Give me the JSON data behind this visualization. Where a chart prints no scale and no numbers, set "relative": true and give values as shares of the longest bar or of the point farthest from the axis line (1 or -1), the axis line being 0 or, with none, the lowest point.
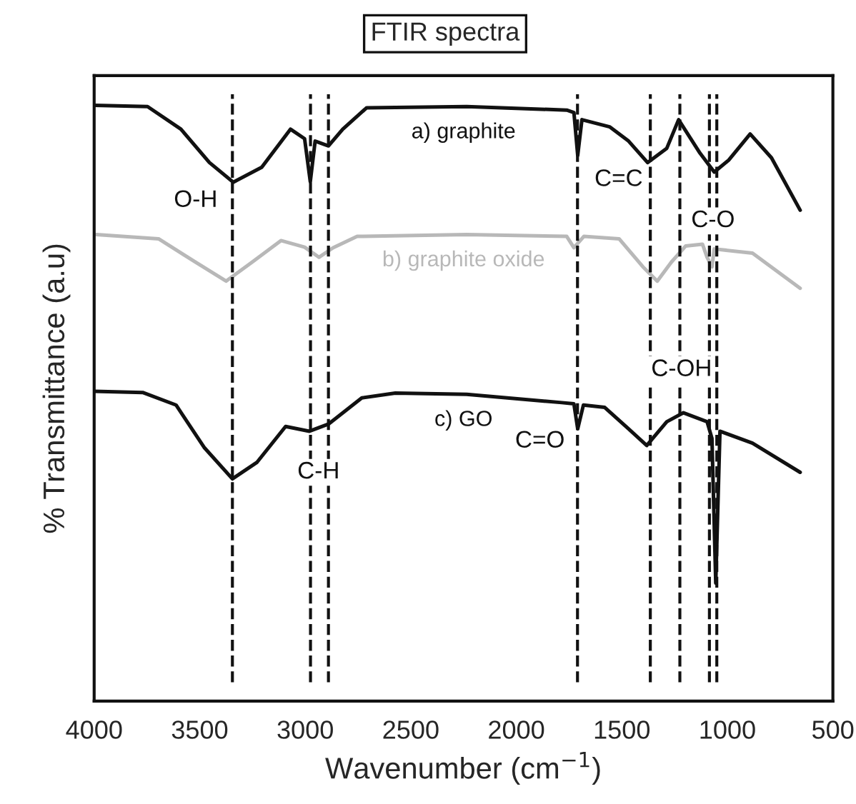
{
  "chart_data": {
    "type": "line",
    "title": "FTIR spectra",
    "xlabel": "Wavenumber (cm$^{−1}$)",
    "ylabel": "% Transmittance (a.u)",
    "relative": true,
    "xlim": [
      4000,
      500
    ],
    "xticks": [
      4000,
      3500,
      3000,
      2500,
      2000,
      1500,
      1000,
      500
    ],
    "tick_labels": "x",
    "grid": false,
    "legend": false,
    "marker": "none",
    "line_style": "solid",
    "series": [
      {
        "name": "a) graphite",
        "color": "#111111",
        "x": [
          4000,
          3747,
          3589,
          3454,
          3341,
          3206,
          3070,
          3003,
          2976,
          2953,
          2890,
          2822,
          2709,
          2235,
          1761,
          1727,
          1709,
          1689,
          1558,
          1468,
          1378,
          1287,
          1231,
          1130,
          1062,
          994,
          892,
          791,
          655
        ],
        "values": [
          1.0,
          0.998,
          0.96,
          0.904,
          0.871,
          0.896,
          0.96,
          0.944,
          0.872,
          0.94,
          0.932,
          0.96,
          0.996,
          0.998,
          0.992,
          0.988,
          0.916,
          0.976,
          0.964,
          0.94,
          0.904,
          0.928,
          0.976,
          0.92,
          0.888,
          0.908,
          0.952,
          0.912,
          0.824
        ]
      },
      {
        "name": "b) graphite oxide",
        "color": "#b8b8b8",
        "x": [
          3989,
          3695,
          3521,
          3375,
          3251,
          3115,
          3003,
          2935,
          2868,
          2754,
          2235,
          1761,
          1727,
          1680,
          1513,
          1400,
          1332,
          1265,
          1197,
          1118,
          1096,
          1073,
          1062,
          881,
          655
        ],
        "values": [
          0.783,
          0.776,
          0.737,
          0.705,
          0.737,
          0.773,
          0.762,
          0.745,
          0.761,
          0.78,
          0.783,
          0.78,
          0.761,
          0.78,
          0.776,
          0.729,
          0.705,
          0.737,
          0.764,
          0.767,
          0.745,
          0.729,
          0.759,
          0.752,
          0.693
        ]
      },
      {
        "name": "c) GO",
        "color": "#111111",
        "x": [
          4000,
          3770,
          3612,
          3477,
          3345,
          3228,
          3093,
          2980,
          2890,
          2732,
          2573,
          2235,
          1784,
          1727,
          1709,
          1682,
          1581,
          1468,
          1382,
          1287,
          1208,
          1096,
          1073,
          1055,
          1035,
          881,
          655
        ],
        "values": [
          0.52,
          0.518,
          0.497,
          0.425,
          0.373,
          0.401,
          0.461,
          0.453,
          0.465,
          0.509,
          0.517,
          0.515,
          0.501,
          0.499,
          0.457,
          0.497,
          0.493,
          0.457,
          0.429,
          0.469,
          0.484,
          0.469,
          0.441,
          0.198,
          0.453,
          0.433,
          0.384
        ]
      }
    ],
    "ref_lines": [
      {
        "axis": "x",
        "value": 3345,
        "line_style": "dashed",
        "color": "#111111"
      },
      {
        "axis": "x",
        "value": 2975,
        "line_style": "dashed",
        "color": "#111111"
      },
      {
        "axis": "x",
        "value": 2890,
        "line_style": "dashed",
        "color": "#111111"
      },
      {
        "axis": "x",
        "value": 1710,
        "line_style": "dashed",
        "color": "#111111"
      },
      {
        "axis": "x",
        "value": 1365,
        "line_style": "dashed",
        "color": "#111111"
      },
      {
        "axis": "x",
        "value": 1225,
        "line_style": "dashed",
        "color": "#111111"
      },
      {
        "axis": "x",
        "value": 1085,
        "line_style": "dashed",
        "color": "#111111"
      },
      {
        "axis": "x",
        "value": 1050,
        "line_style": "dashed",
        "color": "#111111"
      }
    ],
    "annotations": [
      {
        "text": "O-H",
        "x": 3519,
        "y": 0.84
      },
      {
        "text": "C=C",
        "x": 1515,
        "y": 0.875
      },
      {
        "text": "C-O",
        "x": 1068,
        "y": 0.806
      },
      {
        "text": "C-OH",
        "x": 1217,
        "y": 0.556
      },
      {
        "text": "C-H",
        "x": 2937,
        "y": 0.384
      },
      {
        "text": "C=O",
        "x": 1888,
        "y": 0.436
      }
    ]
  }
}
